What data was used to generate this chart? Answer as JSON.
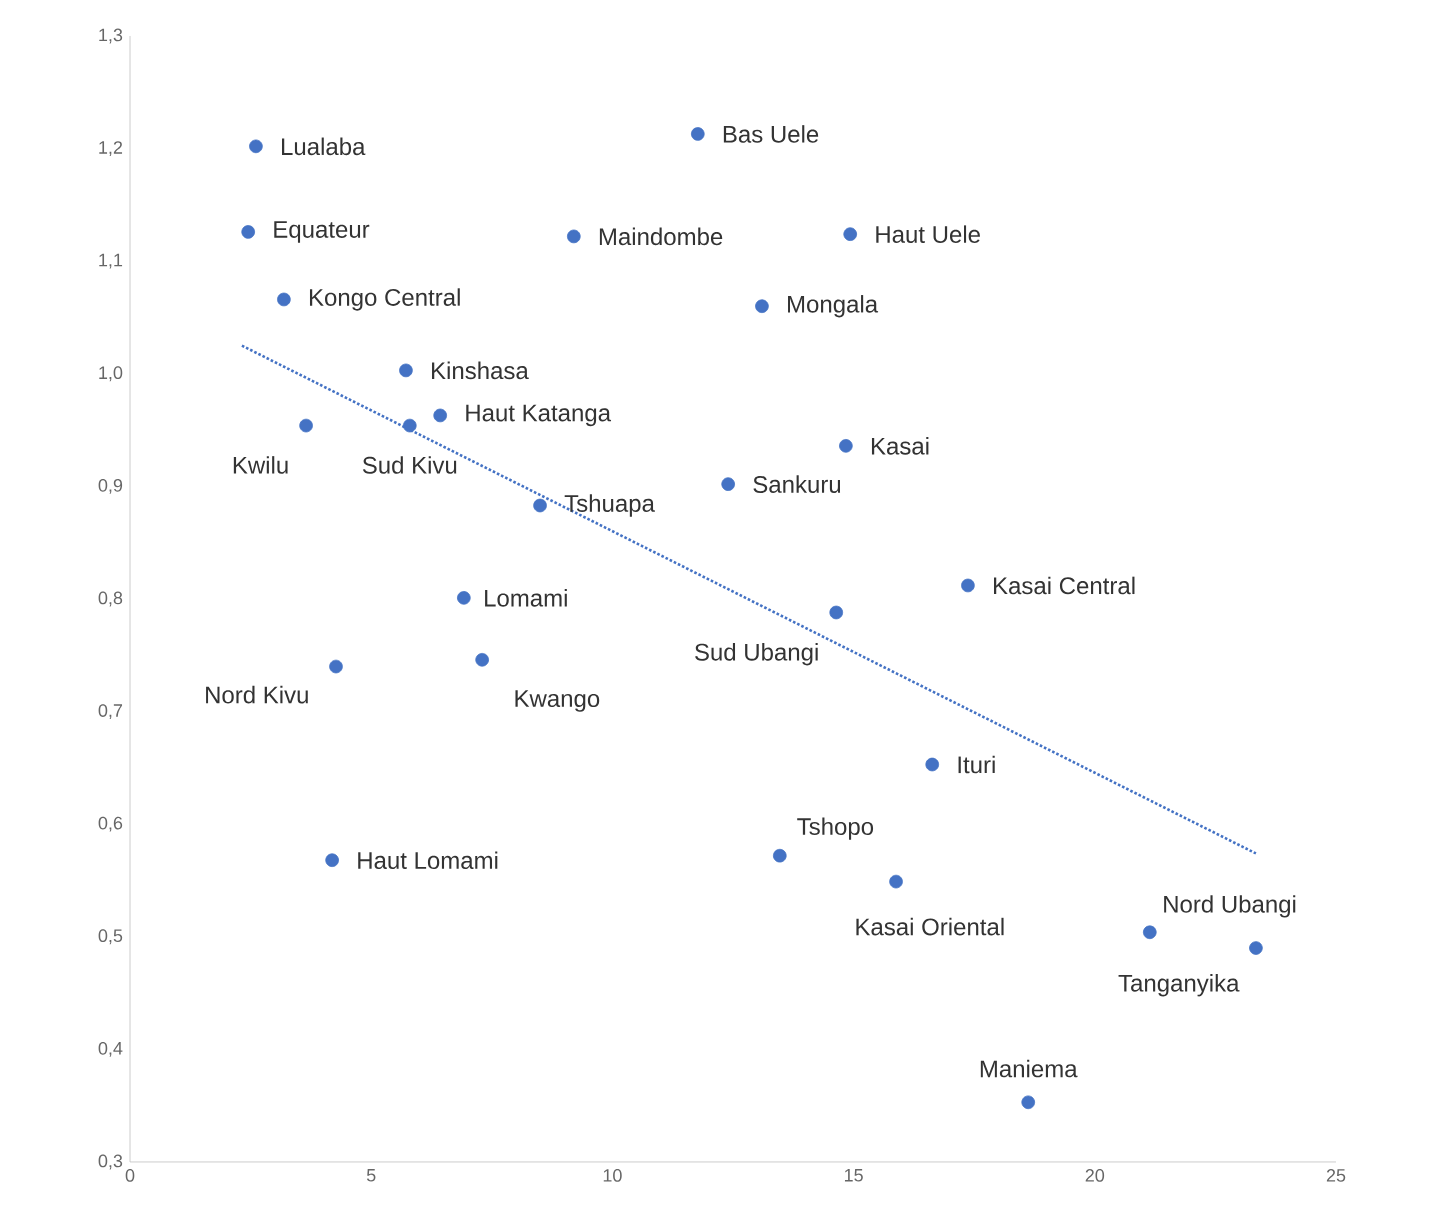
{
  "chart_data": {
    "type": "scatter",
    "marker": "circle",
    "grid": false,
    "xlim": [
      0,
      25
    ],
    "xticks": [
      0,
      5,
      10,
      15,
      20,
      25
    ],
    "ylim": [
      0.3,
      1.3
    ],
    "yticks": [
      {
        "value": 0.3,
        "label": "0,3"
      },
      {
        "value": 0.4,
        "label": "0,4"
      },
      {
        "value": 0.5,
        "label": "0,5"
      },
      {
        "value": 0.6,
        "label": "0,6"
      },
      {
        "value": 0.7,
        "label": "0,7"
      },
      {
        "value": 0.8,
        "label": "0,8"
      },
      {
        "value": 0.9,
        "label": "0,9"
      },
      {
        "value": 1.0,
        "label": "1,0"
      },
      {
        "value": 1.1,
        "label": "1,1"
      },
      {
        "value": 1.2,
        "label": "1,2"
      },
      {
        "value": 1.3,
        "label": "1,3"
      }
    ],
    "series": [
      {
        "color": "#4472c4",
        "x": [
          2.61,
          2.45,
          3.19,
          5.72,
          3.65,
          5.8,
          6.43,
          8.5,
          6.92,
          7.3,
          4.27,
          4.19,
          11.77,
          9.2,
          14.93,
          13.1,
          14.84,
          12.4,
          17.37,
          14.64,
          16.63,
          13.47,
          15.88,
          21.14,
          23.34,
          18.62
        ],
        "values": [
          1.202,
          1.126,
          1.066,
          1.003,
          0.954,
          0.954,
          0.963,
          0.883,
          0.801,
          0.746,
          0.74,
          0.568,
          1.213,
          1.122,
          1.124,
          1.06,
          0.936,
          0.902,
          0.812,
          0.788,
          0.653,
          0.572,
          0.549,
          0.504,
          0.49,
          0.353
        ]
      },
      {
        "type": "line",
        "color": "#4472c4",
        "line_style": "dotted",
        "marker": "none",
        "x": [
          2.32,
          23.34
        ],
        "values": [
          1.025,
          0.574
        ]
      }
    ],
    "annotations": [
      {
        "text": "Lualaba",
        "x": 2.61,
        "y": 1.202
      },
      {
        "text": "Equateur",
        "x": 2.45,
        "y": 1.126
      },
      {
        "text": "Kongo Central",
        "x": 3.19,
        "y": 1.066
      },
      {
        "text": "Kinshasa",
        "x": 5.72,
        "y": 1.003
      },
      {
        "text": "Kwilu",
        "x": 3.65,
        "y": 0.954
      },
      {
        "text": "Sud Kivu",
        "x": 5.8,
        "y": 0.954
      },
      {
        "text": "Haut Katanga",
        "x": 6.43,
        "y": 0.963
      },
      {
        "text": "Tshuapa",
        "x": 8.5,
        "y": 0.883
      },
      {
        "text": "Lomami",
        "x": 6.92,
        "y": 0.801
      },
      {
        "text": "Kwango",
        "x": 7.3,
        "y": 0.746
      },
      {
        "text": "Nord Kivu",
        "x": 4.27,
        "y": 0.74
      },
      {
        "text": "Haut Lomami",
        "x": 4.19,
        "y": 0.568
      },
      {
        "text": "Bas Uele",
        "x": 11.77,
        "y": 1.213
      },
      {
        "text": "Maindombe",
        "x": 9.2,
        "y": 1.122
      },
      {
        "text": "Haut Uele",
        "x": 14.93,
        "y": 1.124
      },
      {
        "text": "Mongala",
        "x": 13.1,
        "y": 1.06
      },
      {
        "text": "Kasai",
        "x": 14.84,
        "y": 0.936
      },
      {
        "text": "Sankuru",
        "x": 12.4,
        "y": 0.902
      },
      {
        "text": "Kasai Central",
        "x": 17.37,
        "y": 0.812
      },
      {
        "text": "Sud Ubangi",
        "x": 14.64,
        "y": 0.788
      },
      {
        "text": "Ituri",
        "x": 16.63,
        "y": 0.653
      },
      {
        "text": "Tshopo",
        "x": 13.47,
        "y": 0.572
      },
      {
        "text": "Kasai Oriental",
        "x": 15.88,
        "y": 0.549
      },
      {
        "text": "Tanganyika",
        "x": 21.14,
        "y": 0.504
      },
      {
        "text": "Nord Ubangi",
        "x": 23.34,
        "y": 0.49
      },
      {
        "text": "Maniema",
        "x": 18.62,
        "y": 0.353
      }
    ]
  }
}
